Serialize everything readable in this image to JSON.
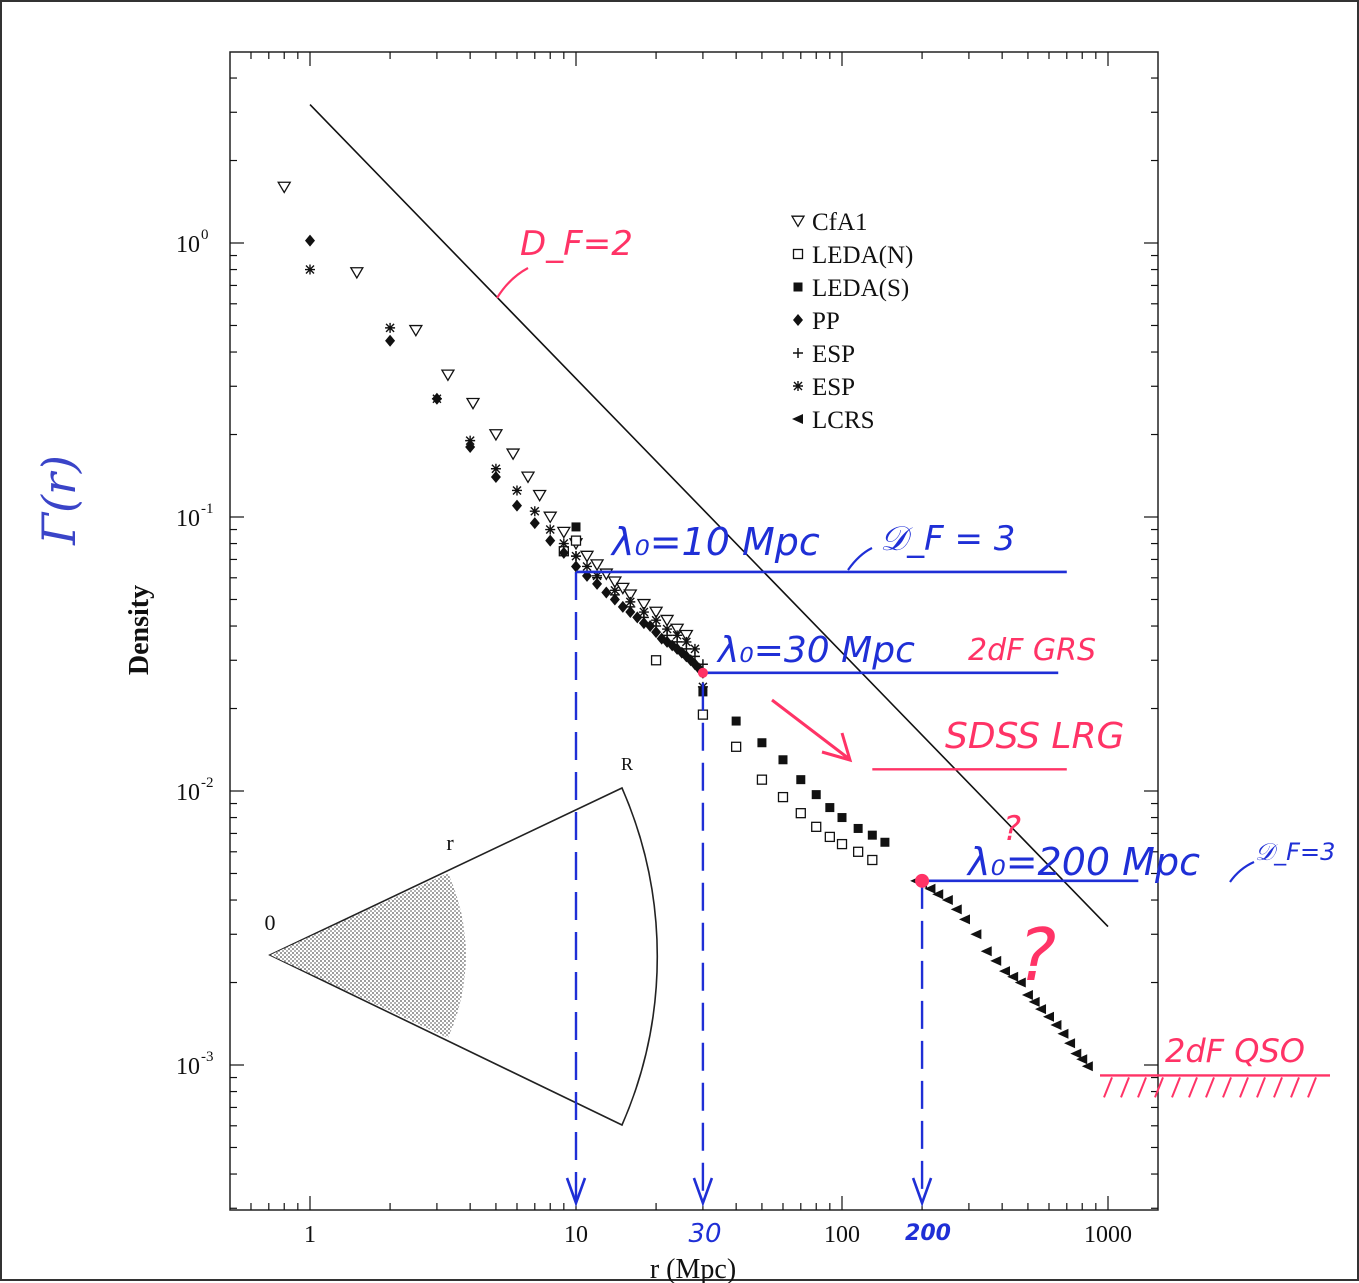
{
  "colors": {
    "ink": "#111111",
    "blue": "#1f2fd6",
    "red": "#ff3366",
    "sector_fill": "#b8b8b8"
  },
  "chart_data": {
    "type": "scatter",
    "xlabel": "r (Mpc)",
    "ylabel": "Density",
    "handwritten_ylabel": "Γ(r)",
    "x_scale": "log",
    "y_scale": "log",
    "xlim": [
      0.6,
      1300
    ],
    "ylim": [
      0.00028,
      5.5
    ],
    "x_ticks": [
      {
        "value": 1,
        "label": "1"
      },
      {
        "value": 10,
        "label": "10"
      },
      {
        "value": 100,
        "label": "100"
      },
      {
        "value": 1000,
        "label": "1000"
      }
    ],
    "y_ticks": [
      {
        "value": 1,
        "label": "10",
        "exp": "0"
      },
      {
        "value": 0.1,
        "label": "10",
        "exp": "-1"
      },
      {
        "value": 0.01,
        "label": "10",
        "exp": "-2"
      },
      {
        "value": 0.001,
        "label": "10",
        "exp": "-3"
      }
    ],
    "legend_position": "top-right",
    "series": [
      {
        "name": "CfA1",
        "marker": "triangle-down-open",
        "points": [
          [
            0.8,
            1.6
          ],
          [
            1.5,
            0.78
          ],
          [
            2.5,
            0.48
          ],
          [
            3.3,
            0.33
          ],
          [
            4.1,
            0.26
          ],
          [
            5,
            0.2
          ],
          [
            5.8,
            0.17
          ],
          [
            6.6,
            0.14
          ],
          [
            7.3,
            0.12
          ],
          [
            8,
            0.1
          ],
          [
            9,
            0.088
          ],
          [
            10,
            0.08
          ],
          [
            11,
            0.072
          ],
          [
            12,
            0.067
          ],
          [
            13,
            0.062
          ],
          [
            14,
            0.058
          ],
          [
            15,
            0.055
          ],
          [
            16,
            0.052
          ],
          [
            18,
            0.048
          ],
          [
            20,
            0.045
          ],
          [
            22,
            0.042
          ],
          [
            24,
            0.039
          ],
          [
            26,
            0.037
          ]
        ]
      },
      {
        "name": "LEDA(N)",
        "marker": "square-open",
        "points": [
          [
            9,
            0.075
          ],
          [
            10,
            0.082
          ],
          [
            20,
            0.03
          ],
          [
            30,
            0.019
          ],
          [
            40,
            0.0145
          ],
          [
            50,
            0.011
          ],
          [
            60,
            0.0095
          ],
          [
            70,
            0.0083
          ],
          [
            80,
            0.0074
          ],
          [
            90,
            0.0068
          ],
          [
            100,
            0.0064
          ],
          [
            115,
            0.006
          ],
          [
            130,
            0.0056
          ]
        ]
      },
      {
        "name": "LEDA(S)",
        "marker": "square-filled",
        "points": [
          [
            10,
            0.092
          ],
          [
            30,
            0.023
          ],
          [
            40,
            0.018
          ],
          [
            50,
            0.015
          ],
          [
            60,
            0.013
          ],
          [
            70,
            0.011
          ],
          [
            80,
            0.0097
          ],
          [
            90,
            0.0087
          ],
          [
            100,
            0.008
          ],
          [
            115,
            0.0073
          ],
          [
            130,
            0.0069
          ],
          [
            145,
            0.0065
          ]
        ]
      },
      {
        "name": "PP",
        "marker": "diamond-filled",
        "points": [
          [
            1,
            1.02
          ],
          [
            2,
            0.44
          ],
          [
            3,
            0.27
          ],
          [
            4,
            0.18
          ],
          [
            5,
            0.14
          ],
          [
            6,
            0.11
          ],
          [
            7,
            0.095
          ],
          [
            8,
            0.082
          ],
          [
            9,
            0.074
          ],
          [
            10,
            0.066
          ],
          [
            11,
            0.061
          ],
          [
            12,
            0.057
          ],
          [
            13,
            0.053
          ],
          [
            14,
            0.05
          ],
          [
            15,
            0.047
          ],
          [
            16,
            0.045
          ],
          [
            17,
            0.043
          ],
          [
            18,
            0.041
          ],
          [
            19,
            0.04
          ],
          [
            20,
            0.038
          ],
          [
            21,
            0.036
          ],
          [
            22,
            0.035
          ],
          [
            23,
            0.034
          ],
          [
            24,
            0.033
          ],
          [
            25,
            0.032
          ],
          [
            26,
            0.031
          ],
          [
            27,
            0.03
          ],
          [
            28,
            0.029
          ],
          [
            29,
            0.028
          ],
          [
            30,
            0.027
          ]
        ]
      },
      {
        "name": "ESP",
        "marker": "plus",
        "points": [
          [
            10,
            0.072
          ],
          [
            12,
            0.06
          ],
          [
            14,
            0.052
          ],
          [
            16,
            0.047
          ],
          [
            18,
            0.043
          ],
          [
            20,
            0.04
          ],
          [
            22,
            0.037
          ],
          [
            24,
            0.035
          ],
          [
            26,
            0.033
          ],
          [
            28,
            0.031
          ],
          [
            30,
            0.029
          ]
        ]
      },
      {
        "name": "ESP",
        "marker": "asterisk",
        "points": [
          [
            1,
            0.8
          ],
          [
            2,
            0.49
          ],
          [
            3,
            0.27
          ],
          [
            4,
            0.19
          ],
          [
            5,
            0.15
          ],
          [
            6,
            0.125
          ],
          [
            7,
            0.105
          ],
          [
            8,
            0.09
          ],
          [
            9,
            0.08
          ],
          [
            10,
            0.072
          ],
          [
            11,
            0.066
          ],
          [
            12,
            0.061
          ],
          [
            14,
            0.054
          ],
          [
            16,
            0.049
          ],
          [
            18,
            0.045
          ],
          [
            20,
            0.042
          ],
          [
            22,
            0.039
          ],
          [
            24,
            0.037
          ],
          [
            26,
            0.035
          ],
          [
            28,
            0.033
          ],
          [
            30,
            0.024
          ]
        ]
      },
      {
        "name": "LCRS",
        "marker": "triangle-left-filled",
        "points": [
          [
            190,
            0.0047
          ],
          [
            200,
            0.0046
          ],
          [
            215,
            0.0044
          ],
          [
            230,
            0.0042
          ],
          [
            250,
            0.004
          ],
          [
            270,
            0.0037
          ],
          [
            290,
            0.0034
          ],
          [
            320,
            0.003
          ],
          [
            350,
            0.0026
          ],
          [
            380,
            0.0024
          ],
          [
            410,
            0.0022
          ],
          [
            440,
            0.0021
          ],
          [
            470,
            0.002
          ],
          [
            500,
            0.0018
          ],
          [
            530,
            0.0017
          ],
          [
            560,
            0.0016
          ],
          [
            600,
            0.0015
          ],
          [
            640,
            0.0014
          ],
          [
            680,
            0.0013
          ],
          [
            720,
            0.0012
          ],
          [
            760,
            0.0011
          ],
          [
            800,
            0.00105
          ],
          [
            840,
            0.00099
          ]
        ]
      }
    ],
    "fit_line": {
      "label": "D_F=2",
      "from": [
        1,
        3.2
      ],
      "to": [
        1000,
        0.0032
      ]
    },
    "annotations": {
      "lambda_10": {
        "text": "λ₀=10 Mpc",
        "df": "𝒟_F = 3",
        "x": 10,
        "y": 0.063,
        "x_end": 700
      },
      "lambda_30": {
        "text": "λ₀=30 Mpc",
        "survey": "2dF GRS",
        "x": 30,
        "y": 0.027,
        "x_end": 650
      },
      "sdss": {
        "text": "SDSS LRG",
        "x_start": 130,
        "x_end": 700,
        "y": 0.012
      },
      "lambda_200": {
        "text": "λ₀=200 Mpc",
        "df": "𝒟_F=3",
        "x": 200,
        "y": 0.0047,
        "x_end": 1300
      },
      "question_small": "?",
      "question_big": "?",
      "qso": {
        "text": "2dF QSO",
        "y": 0.00098
      },
      "arrow_labels": [
        "30",
        "200"
      ]
    },
    "inset": {
      "labels": {
        "origin": "0",
        "small_r": "r",
        "big_r": "R"
      }
    }
  }
}
